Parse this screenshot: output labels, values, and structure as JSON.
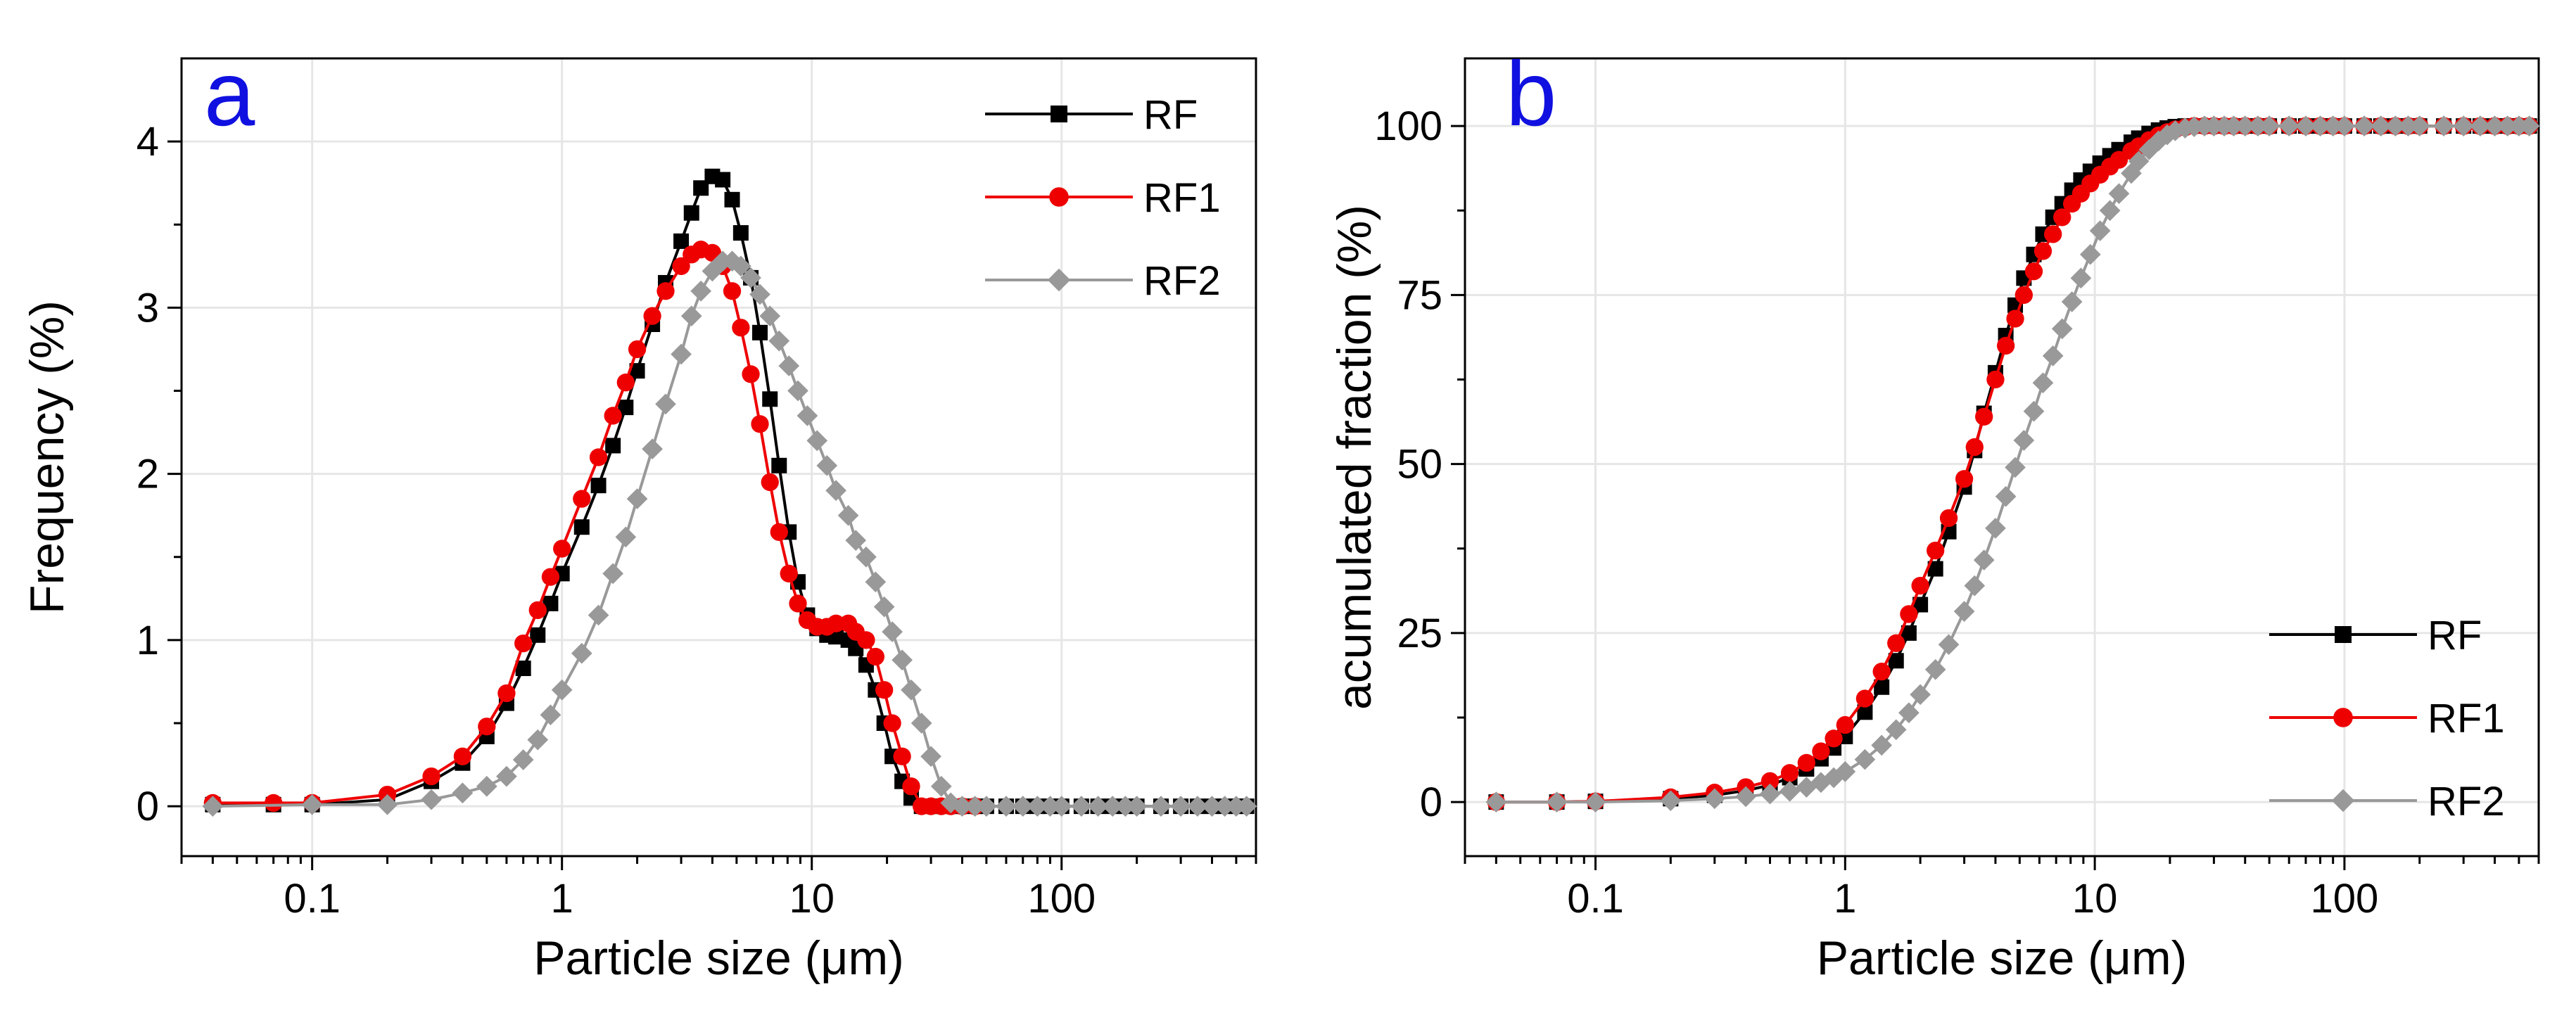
{
  "chart_data": [
    {
      "type": "line",
      "panel_label": "a",
      "xlabel": "Particle size (μm)",
      "ylabel": "Frequency (%)",
      "xscale": "log",
      "xlim": [
        0.03,
        600
      ],
      "ylim": [
        -0.3,
        4.5
      ],
      "grid": true,
      "legend_position": "top-right",
      "x_ticks": [
        0.1,
        1,
        10,
        100
      ],
      "x_tick_labels": [
        "0.1",
        "1",
        "10",
        "100"
      ],
      "y_ticks": [
        0,
        1,
        2,
        3,
        4
      ],
      "y_tick_labels": [
        "0",
        "1",
        "2",
        "3",
        "4"
      ],
      "series": [
        {
          "name": "RF",
          "color": "#000000",
          "marker": "square",
          "x": [
            0.04,
            0.07,
            0.1,
            0.2,
            0.3,
            0.4,
            0.5,
            0.6,
            0.7,
            0.8,
            0.9,
            1.0,
            1.2,
            1.4,
            1.6,
            1.8,
            2.0,
            2.3,
            2.6,
            3.0,
            3.3,
            3.6,
            4.0,
            4.4,
            4.8,
            5.2,
            5.7,
            6.2,
            6.8,
            7.4,
            8.1,
            8.8,
            9.6,
            10.5,
            11.5,
            12.5,
            14,
            15,
            16.5,
            18,
            19.5,
            21,
            23,
            25,
            27.5,
            30,
            33,
            36,
            40,
            45,
            50,
            60,
            70,
            80,
            90,
            100,
            120,
            140,
            160,
            180,
            200,
            250,
            300,
            350,
            400,
            450,
            500,
            550
          ],
          "y": [
            0.01,
            0.01,
            0.01,
            0.04,
            0.15,
            0.26,
            0.42,
            0.62,
            0.83,
            1.03,
            1.22,
            1.4,
            1.68,
            1.93,
            2.17,
            2.4,
            2.62,
            2.9,
            3.15,
            3.4,
            3.57,
            3.72,
            3.79,
            3.77,
            3.65,
            3.45,
            3.18,
            2.85,
            2.45,
            2.05,
            1.65,
            1.35,
            1.15,
            1.07,
            1.03,
            1.02,
            1.0,
            0.95,
            0.85,
            0.7,
            0.5,
            0.3,
            0.15,
            0.05,
            0.0,
            0.0,
            0.0,
            0.0,
            0.0,
            0.0,
            0.0,
            0.0,
            0.0,
            0.0,
            0.0,
            0.0,
            0.0,
            0.0,
            0.0,
            0.0,
            0.0,
            0.0,
            0.0,
            0.0,
            0.0,
            0.0,
            0.0,
            0.0
          ]
        },
        {
          "name": "RF1",
          "color": "#ee0000",
          "marker": "circle",
          "x": [
            0.04,
            0.07,
            0.1,
            0.2,
            0.3,
            0.4,
            0.5,
            0.6,
            0.7,
            0.8,
            0.9,
            1.0,
            1.2,
            1.4,
            1.6,
            1.8,
            2.0,
            2.3,
            2.6,
            3.0,
            3.3,
            3.6,
            4.0,
            4.4,
            4.8,
            5.2,
            5.7,
            6.2,
            6.8,
            7.4,
            8.1,
            8.8,
            9.6,
            10.5,
            11.5,
            12.5,
            14,
            15,
            16.5,
            18,
            19.5,
            21,
            23,
            25,
            27.5,
            30,
            33,
            36,
            40,
            45
          ],
          "y": [
            0.02,
            0.02,
            0.02,
            0.07,
            0.18,
            0.3,
            0.48,
            0.68,
            0.98,
            1.18,
            1.38,
            1.55,
            1.85,
            2.1,
            2.35,
            2.55,
            2.75,
            2.95,
            3.1,
            3.25,
            3.32,
            3.35,
            3.33,
            3.25,
            3.1,
            2.88,
            2.6,
            2.3,
            1.95,
            1.65,
            1.4,
            1.22,
            1.12,
            1.08,
            1.08,
            1.1,
            1.1,
            1.05,
            1.0,
            0.9,
            0.7,
            0.5,
            0.3,
            0.12,
            0.0,
            0.0,
            0.0,
            0.0,
            0.0,
            0.0
          ]
        },
        {
          "name": "RF2",
          "color": "#999999",
          "marker": "diamond",
          "x": [
            0.04,
            0.1,
            0.2,
            0.3,
            0.4,
            0.5,
            0.6,
            0.7,
            0.8,
            0.9,
            1.0,
            1.2,
            1.4,
            1.6,
            1.8,
            2.0,
            2.3,
            2.6,
            3.0,
            3.3,
            3.6,
            4.0,
            4.4,
            4.8,
            5.2,
            5.7,
            6.2,
            6.8,
            7.4,
            8.1,
            8.8,
            9.6,
            10.5,
            11.5,
            12.5,
            14,
            15,
            16.5,
            18,
            19.5,
            21,
            23,
            25,
            27.5,
            30,
            33,
            36,
            40,
            45,
            50,
            60,
            70,
            80,
            90,
            100,
            120,
            140,
            160,
            180,
            200,
            250,
            300,
            350,
            400,
            450,
            500,
            550
          ],
          "y": [
            0.0,
            0.01,
            0.01,
            0.04,
            0.08,
            0.12,
            0.18,
            0.28,
            0.4,
            0.55,
            0.7,
            0.92,
            1.15,
            1.4,
            1.62,
            1.85,
            2.15,
            2.42,
            2.72,
            2.95,
            3.1,
            3.22,
            3.28,
            3.28,
            3.25,
            3.18,
            3.08,
            2.95,
            2.8,
            2.65,
            2.5,
            2.35,
            2.2,
            2.05,
            1.9,
            1.75,
            1.6,
            1.5,
            1.35,
            1.2,
            1.05,
            0.88,
            0.7,
            0.5,
            0.3,
            0.12,
            0.02,
            0.0,
            0.0,
            0.0,
            0.0,
            0.0,
            0.0,
            0.0,
            0.0,
            0.0,
            0.0,
            0.0,
            0.0,
            0.0,
            0.0,
            0.0,
            0.0,
            0.0,
            0.0,
            0.0,
            0.0
          ]
        }
      ]
    },
    {
      "type": "line",
      "panel_label": "b",
      "xlabel": "Particle size (μm)",
      "ylabel": "acumulated fraction (%)",
      "xscale": "log",
      "xlim": [
        0.03,
        600
      ],
      "ylim": [
        -8,
        110
      ],
      "grid": true,
      "legend_position": "bottom-right",
      "x_ticks": [
        0.1,
        1,
        10,
        100
      ],
      "x_tick_labels": [
        "0.1",
        "1",
        "10",
        "100"
      ],
      "y_ticks": [
        0,
        25,
        50,
        75,
        100
      ],
      "y_tick_labels": [
        "0",
        "25",
        "50",
        "75",
        "100"
      ],
      "series": [
        {
          "name": "RF",
          "color": "#000000",
          "marker": "square",
          "x": [
            0.04,
            0.07,
            0.1,
            0.2,
            0.3,
            0.4,
            0.5,
            0.6,
            0.7,
            0.8,
            0.9,
            1.0,
            1.2,
            1.4,
            1.6,
            1.8,
            2.0,
            2.3,
            2.6,
            3.0,
            3.3,
            3.6,
            4.0,
            4.4,
            4.8,
            5.2,
            5.7,
            6.2,
            6.8,
            7.4,
            8.1,
            8.8,
            9.6,
            10.5,
            11.5,
            12.5,
            14,
            15,
            16.5,
            18,
            19.5,
            21,
            23,
            25,
            27.5,
            30,
            33,
            36,
            40,
            45,
            50,
            60,
            70,
            80,
            90,
            100,
            120,
            140,
            160,
            180,
            200,
            250,
            300,
            350,
            400,
            450,
            500,
            550
          ],
          "y": [
            0.0,
            0.0,
            0.1,
            0.5,
            1.0,
            1.7,
            2.5,
            3.6,
            4.9,
            6.4,
            8.0,
            9.7,
            13.3,
            17.0,
            20.9,
            25.0,
            29.2,
            34.5,
            40.0,
            46.6,
            52.0,
            57.5,
            63.5,
            69.0,
            73.5,
            77.5,
            81.0,
            84.0,
            86.5,
            88.5,
            90.5,
            92.0,
            93.3,
            94.5,
            95.6,
            96.5,
            97.6,
            98.2,
            98.9,
            99.4,
            99.7,
            99.9,
            100,
            100,
            100,
            100,
            100,
            100,
            100,
            100,
            100,
            100,
            100,
            100,
            100,
            100,
            100,
            100,
            100,
            100,
            100,
            100,
            100,
            100,
            100,
            100,
            100,
            100
          ]
        },
        {
          "name": "RF1",
          "color": "#ee0000",
          "marker": "circle",
          "x": [
            0.04,
            0.07,
            0.1,
            0.2,
            0.3,
            0.4,
            0.5,
            0.6,
            0.7,
            0.8,
            0.9,
            1.0,
            1.2,
            1.4,
            1.6,
            1.8,
            2.0,
            2.3,
            2.6,
            3.0,
            3.3,
            3.6,
            4.0,
            4.4,
            4.8,
            5.2,
            5.7,
            6.2,
            6.8,
            7.4,
            8.1,
            8.8,
            9.6,
            10.5,
            11.5,
            12.5,
            14,
            15,
            16.5,
            18,
            19.5,
            21,
            23,
            25,
            27.5,
            30,
            33,
            36,
            40,
            45,
            50,
            60,
            70,
            80,
            90,
            100,
            120,
            140,
            160,
            180,
            200,
            250,
            300,
            350,
            400,
            450,
            500,
            550
          ],
          "y": [
            0.0,
            0.0,
            0.1,
            0.7,
            1.4,
            2.2,
            3.1,
            4.3,
            5.8,
            7.5,
            9.4,
            11.4,
            15.3,
            19.3,
            23.5,
            27.8,
            32.0,
            37.2,
            42.0,
            47.8,
            52.5,
            57.0,
            62.5,
            67.5,
            71.5,
            75.0,
            78.5,
            81.5,
            84.0,
            86.5,
            88.5,
            90.0,
            91.5,
            92.8,
            94.0,
            95.0,
            96.3,
            97.0,
            97.9,
            98.6,
            99.1,
            99.5,
            99.8,
            100,
            100,
            100,
            100,
            100,
            100,
            100,
            100,
            100,
            100,
            100,
            100,
            100,
            100,
            100,
            100,
            100,
            100,
            100,
            100,
            100,
            100,
            100,
            100,
            100
          ]
        },
        {
          "name": "RF2",
          "color": "#999999",
          "marker": "diamond",
          "x": [
            0.04,
            0.07,
            0.1,
            0.2,
            0.3,
            0.4,
            0.5,
            0.6,
            0.7,
            0.8,
            0.9,
            1.0,
            1.2,
            1.4,
            1.6,
            1.8,
            2.0,
            2.3,
            2.6,
            3.0,
            3.3,
            3.6,
            4.0,
            4.4,
            4.8,
            5.2,
            5.7,
            6.2,
            6.8,
            7.4,
            8.1,
            8.8,
            9.6,
            10.5,
            11.5,
            12.5,
            14,
            15,
            16.5,
            18,
            19.5,
            21,
            23,
            25,
            27.5,
            30,
            33,
            36,
            40,
            45,
            50,
            60,
            70,
            80,
            90,
            100,
            120,
            140,
            160,
            180,
            200,
            250,
            300,
            350,
            400,
            450,
            500,
            550
          ],
          "y": [
            0.0,
            0.0,
            0.0,
            0.2,
            0.5,
            0.8,
            1.2,
            1.6,
            2.2,
            2.9,
            3.6,
            4.5,
            6.3,
            8.4,
            10.7,
            13.2,
            15.9,
            19.6,
            23.3,
            28.2,
            32.0,
            35.8,
            40.5,
            45.2,
            49.5,
            53.5,
            57.8,
            62.0,
            66.0,
            70.0,
            74.0,
            77.5,
            81.0,
            84.5,
            87.5,
            90.0,
            93.0,
            94.8,
            96.5,
            97.8,
            98.7,
            99.3,
            99.7,
            99.9,
            100,
            100,
            100,
            100,
            100,
            100,
            100,
            100,
            100,
            100,
            100,
            100,
            100,
            100,
            100,
            100,
            100,
            100,
            100,
            100,
            100,
            100,
            100,
            100
          ]
        }
      ]
    }
  ]
}
